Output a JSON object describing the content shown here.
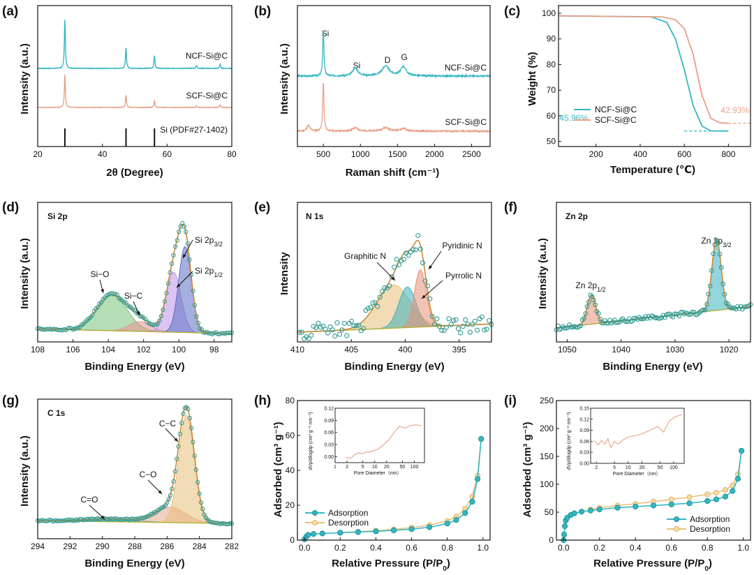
{
  "chart_data": [
    {
      "panel": "(a)",
      "type": "line",
      "xlabel": "2θ (Degree)",
      "ylabel": "Intensity (a.u.)",
      "xlim": [
        20,
        80
      ],
      "xticks": [
        20,
        40,
        60,
        80
      ],
      "series": [
        {
          "name": "NCF-Si@C",
          "color": "#33b7c2",
          "peaks": [
            [
              28.4,
              1.0
            ],
            [
              47.3,
              0.42
            ],
            [
              56.1,
              0.26
            ],
            [
              69.1,
              0.06
            ],
            [
              76.4,
              0.08
            ]
          ]
        },
        {
          "name": "SCF-Si@C",
          "color": "#e8a088",
          "peaks": [
            [
              28.4,
              0.85
            ],
            [
              47.3,
              0.33
            ],
            [
              56.1,
              0.18
            ],
            [
              69.1,
              0.05
            ],
            [
              76.4,
              0.06
            ]
          ]
        }
      ],
      "reference": {
        "name": "Si (PDF#27-1402)",
        "x": [
          28.4,
          47.3,
          56.1
        ]
      }
    },
    {
      "panel": "(b)",
      "type": "line",
      "xlabel": "Raman shift (cm⁻¹)",
      "ylabel": "Intensity (a.u.)",
      "xlim": [
        150,
        2750
      ],
      "xticks": [
        500,
        1000,
        1500,
        2000,
        2500
      ],
      "series": [
        {
          "name": "NCF-Si@C",
          "color": "#33b7c2",
          "peaks": [
            [
              500,
              1.0
            ],
            [
              930,
              0.12
            ],
            [
              1340,
              0.2
            ],
            [
              1580,
              0.17
            ]
          ]
        },
        {
          "name": "SCF-Si@C",
          "color": "#e8a088",
          "peaks": [
            [
              500,
              1.0
            ],
            [
              300,
              0.14
            ],
            [
              930,
              0.06
            ],
            [
              1340,
              0.06
            ],
            [
              1580,
              0.05
            ]
          ]
        }
      ],
      "annotations": [
        "Si",
        "Si",
        "D",
        "G"
      ]
    },
    {
      "panel": "(c)",
      "type": "line",
      "xlabel": "Temperature (℃)",
      "ylabel": "Weight (%)",
      "xlim": [
        30,
        900
      ],
      "ylim": [
        48,
        103
      ],
      "xticks": [
        200,
        400,
        600,
        800
      ],
      "yticks": [
        50,
        60,
        70,
        80,
        90,
        100
      ],
      "series": [
        {
          "name": "NCF-Si@C",
          "color": "#33b7c2",
          "x": [
            30,
            450,
            520,
            560,
            600,
            640,
            680,
            720,
            800
          ],
          "y": [
            99,
            98.6,
            96.5,
            90,
            78,
            64,
            56,
            54.1,
            54.04
          ]
        },
        {
          "name": "SCF-Si@C",
          "color": "#e8a088",
          "x": [
            30,
            500,
            560,
            600,
            640,
            680,
            720,
            760,
            800
          ],
          "y": [
            99,
            98.6,
            97.5,
            94,
            84,
            68,
            59,
            57.3,
            57.07
          ]
        }
      ],
      "annotations": [
        "45.96%",
        "42.93%"
      ],
      "legend": "bottom-left"
    },
    {
      "panel": "(d)",
      "type": "line",
      "title": "Si 2p",
      "xlabel": "Binding Energy (eV)",
      "ylabel": "Intensity (a.u.)",
      "xlim": [
        108,
        97
      ],
      "xticks": [
        108,
        106,
        104,
        102,
        100,
        98
      ],
      "peaks": [
        {
          "label": "Si−O",
          "center": 103.8,
          "height": 0.37,
          "color": "#7cc47a"
        },
        {
          "label": "Si−C",
          "center": 102.2,
          "height": 0.1,
          "color": "#e89494"
        },
        {
          "label": "Si 2p1/2",
          "center": 100.3,
          "height": 0.6,
          "color": "#c397e8"
        },
        {
          "label": "Si 2p3/2",
          "center": 99.7,
          "height": 0.87,
          "color": "#5f71c5"
        }
      ]
    },
    {
      "panel": "(e)",
      "type": "line",
      "title": "N 1s",
      "xlabel": "Binding Energy (eV)",
      "ylabel": "Intensity",
      "xlim": [
        410,
        392
      ],
      "xticks": [
        410,
        405,
        400,
        395
      ],
      "peaks": [
        {
          "label": "Graphitic N",
          "center": 401.1,
          "height": 0.52,
          "color": "#e8c178"
        },
        {
          "label": "Pyrrolic N",
          "center": 399.8,
          "height": 0.42,
          "color": "#3fb3bf"
        },
        {
          "label": "Pyridinic N",
          "center": 398.6,
          "height": 0.5,
          "color": "#e8907a"
        }
      ]
    },
    {
      "panel": "(f)",
      "type": "line",
      "title": "Zn 2p",
      "xlabel": "Binding Energy (eV)",
      "ylabel": "Intensity (a.u.)",
      "xlim": [
        1052,
        1016
      ],
      "xticks": [
        1050,
        1040,
        1030,
        1020
      ],
      "peaks": [
        {
          "label": "Zn 2p1/2",
          "center": 1045.2,
          "height": 0.33,
          "color": "#e8907a"
        },
        {
          "label": "Zn 2p3/2",
          "center": 1022.2,
          "height": 0.82,
          "color": "#3fb3bf"
        }
      ]
    },
    {
      "panel": "(g)",
      "type": "line",
      "title": "C 1s",
      "xlabel": "Binding Energy (eV)",
      "ylabel": "Intensity (a.u.)",
      "xlim": [
        294,
        282
      ],
      "xticks": [
        294,
        292,
        290,
        288,
        286,
        284,
        282
      ],
      "peaks": [
        {
          "label": "C=O",
          "center": 289.5,
          "height": 0.03,
          "color": "#3fb3bf"
        },
        {
          "label": "C−O",
          "center": 285.8,
          "height": 0.18,
          "color": "#e8a890"
        },
        {
          "label": "C−C",
          "center": 284.8,
          "height": 0.9,
          "color": "#e8c178"
        }
      ]
    },
    {
      "panel": "(h)",
      "type": "line",
      "xlabel": "Relative Pressure (P/P₀)",
      "ylabel": "Adsorbed (cm³ g⁻¹)",
      "xlim": [
        -0.04,
        1.04
      ],
      "ylim": [
        0,
        80
      ],
      "xticks": [
        0.0,
        0.2,
        0.4,
        0.6,
        0.8,
        1.0
      ],
      "yticks": [
        0,
        20,
        40,
        60,
        80
      ],
      "series": [
        {
          "name": "Adsorption",
          "color": "#33b7c2",
          "x": [
            0.0,
            0.01,
            0.02,
            0.05,
            0.1,
            0.2,
            0.3,
            0.4,
            0.5,
            0.6,
            0.7,
            0.8,
            0.85,
            0.9,
            0.94,
            0.97,
            0.99
          ],
          "y": [
            0.5,
            2,
            3,
            3.5,
            3.8,
            4.2,
            4.6,
            5,
            5.6,
            6.3,
            7.4,
            9.5,
            11.5,
            15.5,
            22,
            35,
            58
          ]
        },
        {
          "name": "Desorption",
          "color": "#e8c178",
          "x": [
            0.99,
            0.97,
            0.94,
            0.9,
            0.85,
            0.8,
            0.7,
            0.6,
            0.5,
            0.4,
            0.3,
            0.2
          ],
          "y": [
            58,
            37,
            25,
            18,
            13.5,
            11,
            8.6,
            7.2,
            6.2,
            5.4,
            4.8,
            4.3
          ]
        }
      ],
      "inset": {
        "xlabel": "Pore Diameter (nm)",
        "ylabel": "dVp/dlogdp (cm³ g⁻¹ nm⁻¹)",
        "xticks": [
          1,
          2,
          5,
          10,
          20,
          50,
          100
        ],
        "yticks": [
          0.0,
          0.03,
          0.06,
          0.09,
          0.12
        ],
        "x": [
          1.8,
          2.2,
          2.6,
          3.2,
          4,
          5,
          6,
          7,
          9,
          12,
          16,
          22,
          30,
          42,
          60,
          80,
          110,
          150
        ],
        "y": [
          -0.002,
          -0.004,
          -0.002,
          0.006,
          0.009,
          0.007,
          0.012,
          0.011,
          0.014,
          0.018,
          0.028,
          0.04,
          0.058,
          0.075,
          0.071,
          0.077,
          0.079,
          0.076
        ]
      }
    },
    {
      "panel": "(i)",
      "type": "line",
      "xlabel": "Relative Pressure (P/P₀)",
      "ylabel": "Adsorbed (cm³ g⁻¹)",
      "xlim": [
        -0.04,
        1.04
      ],
      "ylim": [
        0,
        250
      ],
      "xticks": [
        0.0,
        0.2,
        0.4,
        0.6,
        0.8,
        1.0
      ],
      "yticks": [
        0,
        50,
        100,
        150,
        200,
        250
      ],
      "series": [
        {
          "name": "Adsorption",
          "color": "#33b7c2",
          "x": [
            0.0,
            0.003,
            0.007,
            0.012,
            0.02,
            0.04,
            0.06,
            0.1,
            0.15,
            0.2,
            0.3,
            0.4,
            0.5,
            0.6,
            0.7,
            0.8,
            0.85,
            0.9,
            0.94,
            0.97,
            0.99
          ],
          "y": [
            0,
            10,
            25,
            35,
            40,
            45,
            48,
            51,
            53,
            55,
            58,
            60,
            62,
            64,
            66,
            70,
            73,
            78,
            88,
            110,
            160
          ]
        },
        {
          "name": "Desorption",
          "color": "#e8c178",
          "x": [
            0.99,
            0.97,
            0.94,
            0.9,
            0.85,
            0.8,
            0.7,
            0.6,
            0.5,
            0.4,
            0.3,
            0.2,
            0.15
          ],
          "y": [
            160,
            118,
            98,
            90,
            85,
            82,
            77,
            73,
            69,
            65,
            62,
            58,
            55
          ]
        }
      ],
      "inset": {
        "xlabel": "Pore Diameter (nm)",
        "ylabel": "dVp/dlogdp (cm³ g⁻¹ nm⁻¹)",
        "xticks": [
          2,
          5,
          10,
          20,
          50,
          100
        ],
        "yticks": [
          0.0,
          0.03,
          0.06,
          0.09,
          0.12,
          0.15
        ],
        "x": [
          1.8,
          2.2,
          2.6,
          3.1,
          3.6,
          4.2,
          5,
          6,
          8,
          10,
          14,
          20,
          30,
          45,
          60,
          80,
          110,
          150
        ],
        "y": [
          0.062,
          0.05,
          0.062,
          0.052,
          0.067,
          0.042,
          0.06,
          0.052,
          0.065,
          0.072,
          0.075,
          0.08,
          0.09,
          0.1,
          0.085,
          0.115,
          0.127,
          0.133
        ]
      }
    }
  ],
  "labels": {
    "a": {
      "letter": "(a)",
      "xlabel": "2θ (Degree)",
      "ylabel": "Intensity (a.u.)",
      "s1": "NCF-Si@C",
      "s2": "SCF-Si@C",
      "ref": "Si (PDF#27-1402)",
      "xt": [
        "20",
        "40",
        "60",
        "80"
      ]
    },
    "b": {
      "letter": "(b)",
      "xlabel": "Raman shift (cm⁻¹)",
      "ylabel": "Intensity (a.u.)",
      "s1": "NCF-Si@C",
      "s2": "SCF-Si@C",
      "si1": "Si",
      "si2": "Si",
      "d": "D",
      "g": "G",
      "xt": [
        "500",
        "1000",
        "1500",
        "2000",
        "2500"
      ]
    },
    "c": {
      "letter": "(c)",
      "xlabel": "Temperature (℃)",
      "ylabel": "Weight (%)",
      "s1": "NCF-Si@C",
      "s2": "SCF-Si@C",
      "v1": "45.96%",
      "v2": "42.93%",
      "xt": [
        "200",
        "400",
        "600",
        "800"
      ],
      "yt": [
        "50",
        "60",
        "70",
        "80",
        "90",
        "100"
      ]
    },
    "d": {
      "letter": "(d)",
      "title": "Si 2p",
      "xlabel": "Binding Energy (eV)",
      "ylabel": "Intensity (a.u.)",
      "p1": "Si−O",
      "p2": "Si−C",
      "p3": "Si 2p",
      "p3s": "1/2",
      "p4": "Si 2p",
      "p4s": "3/2",
      "xt": [
        "108",
        "106",
        "104",
        "102",
        "100",
        "98"
      ]
    },
    "e": {
      "letter": "(e)",
      "title": "N 1s",
      "xlabel": "Binding Energy (eV)",
      "ylabel": "Intensity",
      "p1": "Graphitic N",
      "p2": "Pyrrolic N",
      "p3": "Pyridinic N",
      "xt": [
        "410",
        "405",
        "400",
        "395"
      ]
    },
    "f": {
      "letter": "(f)",
      "title": "Zn 2p",
      "xlabel": "Binding Energy (eV)",
      "ylabel": "Intensity (a.u.)",
      "p1": "Zn 2p",
      "p1s": "1/2",
      "p2": "Zn 2p",
      "p2s": "3/2",
      "xt": [
        "1050",
        "1040",
        "1030",
        "1020"
      ]
    },
    "g": {
      "letter": "(g)",
      "title": "C 1s",
      "xlabel": "Binding Energy (eV)",
      "ylabel": "Intensity (a.u.)",
      "p1": "C=O",
      "p2": "C−O",
      "p3": "C−C",
      "xt": [
        "294",
        "292",
        "290",
        "288",
        "286",
        "284",
        "282"
      ]
    },
    "h": {
      "letter": "(h)",
      "xlabel": "Relative Pressure (P/P",
      "xsub": "0",
      "ylabel": "Adsorbed (cm³ g⁻¹)",
      "s1": "Adsorption",
      "s2": "Desorption",
      "xt": [
        "0.0",
        "0.2",
        "0.4",
        "0.6",
        "0.8",
        "1.0"
      ],
      "yt": [
        "0",
        "20",
        "40",
        "60",
        "80"
      ],
      "ixlab": "Pore Diameter（nm）",
      "iylab": "dVp/dlogdp (cm³ g⁻¹ nm⁻¹)",
      "ixt": [
        "1",
        "2",
        "5",
        "10",
        "20",
        "50",
        "100"
      ],
      "iyt": [
        "0.00",
        "0.03",
        "0.06",
        "0.09",
        "0.12"
      ]
    },
    "i": {
      "letter": "(i)",
      "xlabel": "Relative Pressure (P/P",
      "xsub": "0",
      "ylabel": "Adsorbed (cm³ g⁻¹)",
      "s1": "Adsorption",
      "s2": "Desorption",
      "xt": [
        "0.0",
        "0.2",
        "0.4",
        "0.6",
        "0.8",
        "1.0"
      ],
      "yt": [
        "0",
        "50",
        "100",
        "150",
        "200",
        "250"
      ],
      "ixlab": "Pore Diameter（nm）",
      "iylab": "dVp/dlogdp (cm³ g⁻¹ nm⁻¹)",
      "ixt": [
        "2",
        "5",
        "10",
        "20",
        "50",
        "100"
      ],
      "iyt": [
        "0.00",
        "0.03",
        "0.06",
        "0.09",
        "0.12",
        "0.15"
      ]
    }
  }
}
